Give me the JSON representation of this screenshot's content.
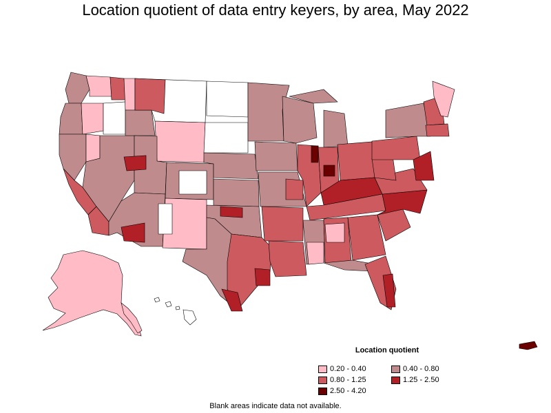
{
  "title": "Location quotient of data entry keyers, by area, May 2022",
  "legend": {
    "title": "Location quotient",
    "items": [
      {
        "label": "0.20 - 0.40",
        "color": "#ffbcc6"
      },
      {
        "label": "0.40 - 0.80",
        "color": "#c08b8c"
      },
      {
        "label": "0.80 - 1.25",
        "color": "#cc5a5e"
      },
      {
        "label": "1.25 - 2.50",
        "color": "#b11f27"
      },
      {
        "label": "2.50 - 4.20",
        "color": "#6b0000"
      }
    ]
  },
  "note": "Blank areas indicate data not available.",
  "colors": {
    "none": "#ffffff",
    "q1": "#ffbcc6",
    "q2": "#c08b8c",
    "q3": "#cc5a5e",
    "q4": "#b11f27",
    "q5": "#6b0000"
  }
}
